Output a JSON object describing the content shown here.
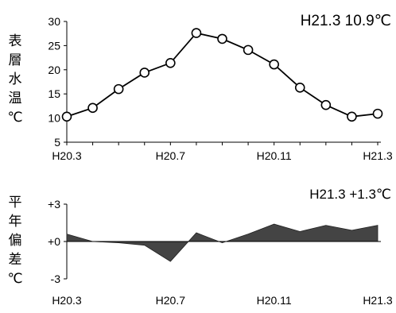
{
  "chart_data": [
    {
      "type": "line",
      "ylabel": [
        "表",
        "層",
        "水",
        "温",
        "℃"
      ],
      "annotation": "H21.3  10.9℃",
      "ylim": [
        5,
        30
      ],
      "yticks": [
        "30",
        "25",
        "20",
        "15",
        "10",
        "5"
      ],
      "xtick_labels": [
        "H20.3",
        "H20.7",
        "H20.11",
        "H21.3"
      ],
      "x": [
        "H20.3",
        "H20.4",
        "H20.5",
        "H20.6",
        "H20.7",
        "H20.8",
        "H20.9",
        "H20.10",
        "H20.11",
        "H20.12",
        "H21.1",
        "H21.2",
        "H21.3"
      ],
      "values": [
        10.3,
        12.1,
        16.0,
        19.4,
        21.4,
        27.6,
        26.4,
        24.1,
        21.1,
        16.3,
        12.7,
        10.3,
        10.9
      ]
    },
    {
      "type": "area",
      "ylabel": [
        "平",
        "年",
        "偏",
        "差",
        "℃"
      ],
      "annotation": "H21.3  +1.3℃",
      "ylim": [
        -3,
        3
      ],
      "yticks": [
        "+3",
        "+0",
        "-3"
      ],
      "xtick_labels": [
        "H20.3",
        "H20.7",
        "H20.11",
        "H21.3"
      ],
      "x": [
        "H20.3",
        "H20.4",
        "H20.5",
        "H20.6",
        "H20.7",
        "H20.8",
        "H20.9",
        "H20.10",
        "H20.11",
        "H20.12",
        "H21.1",
        "H21.2",
        "H21.3"
      ],
      "values": [
        0.6,
        0.0,
        -0.1,
        -0.3,
        -1.6,
        0.7,
        -0.1,
        0.6,
        1.4,
        0.8,
        1.3,
        0.9,
        1.3
      ]
    }
  ]
}
